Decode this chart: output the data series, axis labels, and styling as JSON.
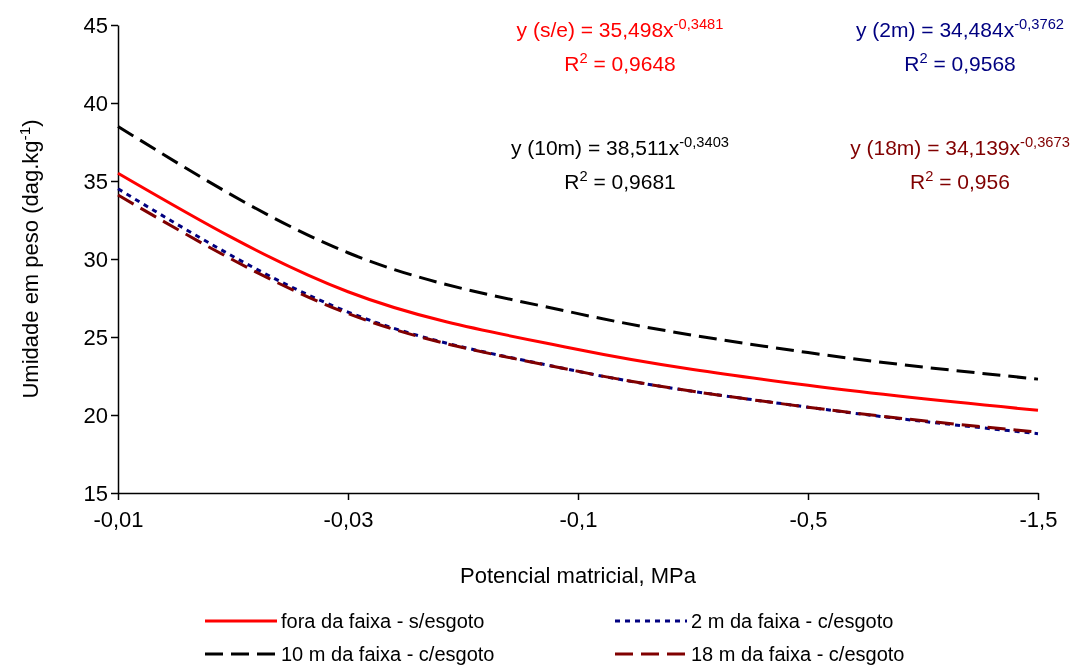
{
  "chart_data": {
    "type": "line",
    "xlabel": "Potencial matricial, MPa",
    "ylabel": "Umidade em peso (dag.kg$^{-1}$)",
    "categories": [
      "-0,01",
      "-0,03",
      "-0,1",
      "-0,5",
      "-1,5"
    ],
    "ylim": [
      15,
      45
    ],
    "yticks": [
      15,
      20,
      25,
      30,
      35,
      40,
      45
    ],
    "grid": false,
    "legend": "bottom",
    "marker": "none",
    "series": [
      {
        "name": "fora da faixa - s/esgoto",
        "color": "#ff0000",
        "line_style": "solid",
        "values": [
          35.5,
          27.9,
          24.2,
          21.9,
          20.3
        ]
      },
      {
        "name": "2 m da faixa - c/esgoto",
        "color": "#000080",
        "line_style": "dotted",
        "values": [
          34.5,
          26.6,
          22.8,
          20.5,
          18.8
        ]
      },
      {
        "name": "10 m da faixa - c/esgoto",
        "color": "#000000",
        "line_style": "dashed",
        "values": [
          38.5,
          30.4,
          26.5,
          24.0,
          22.3
        ]
      },
      {
        "name": "18 m da faixa - c/esgoto",
        "color": "#800000",
        "line_style": "dashed",
        "values": [
          34.1,
          26.5,
          22.8,
          20.5,
          18.9
        ]
      }
    ],
    "annotations": [
      "y (s/e) = 35,498x$^{-0,3481}$",
      "R$^{2}$ = 0,9648",
      "y (2m) = 34,484x$^{-0,3762}$",
      "R$^{2}$ = 0,9568",
      "y (10m) = 38,511x$^{-0,3403}$",
      "R$^{2}$ = 0,9681",
      "y (18m) = 34,139x$^{-0,3673}$",
      "R$^{2}$ = 0,956"
    ]
  }
}
